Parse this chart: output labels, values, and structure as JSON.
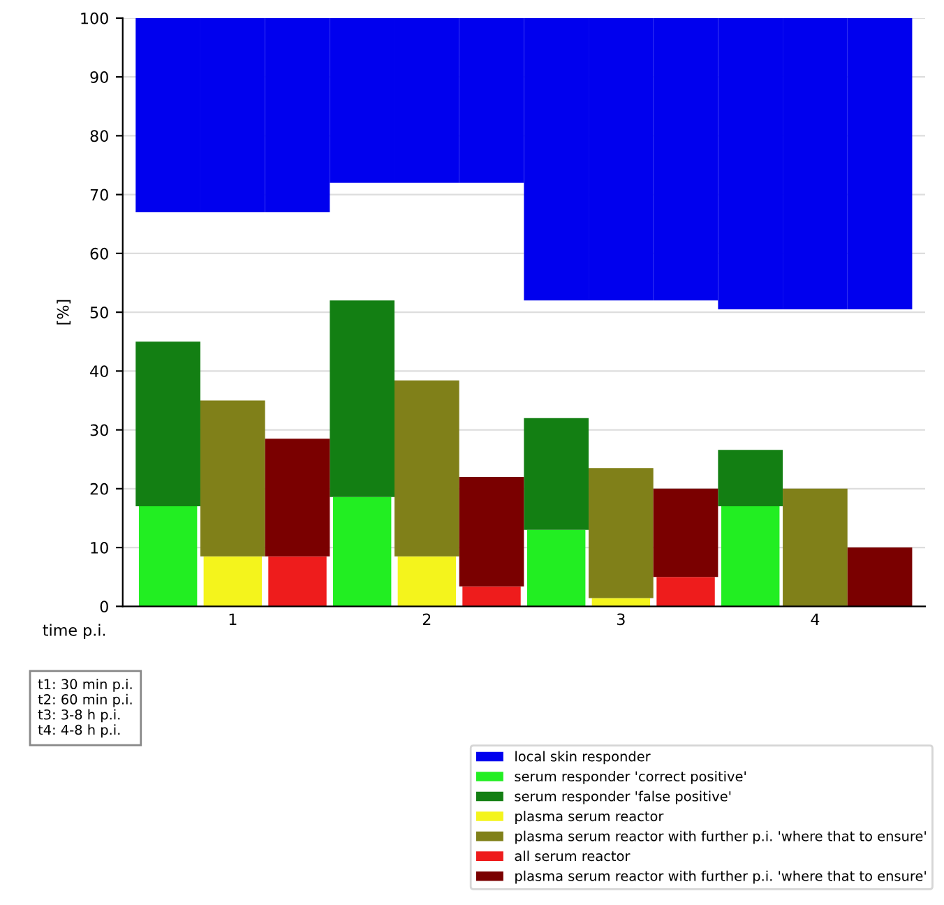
{
  "chart_data": {
    "type": "bar",
    "categories": [
      null,
      "1",
      null,
      null,
      "2",
      null,
      null,
      "3",
      null,
      null,
      "4",
      null
    ],
    "xlabel": "time p.i.",
    "ylabel": "[%]",
    "ylim": [
      0,
      100
    ],
    "yticks": [
      0,
      10,
      20,
      30,
      40,
      50,
      60,
      70,
      80,
      90,
      100
    ],
    "grid": "y",
    "legend": "bottom",
    "series": [
      {
        "name": "serum responder 'correct positive'",
        "color": "#22ee22",
        "values": [
          17,
          null,
          null,
          18.6,
          null,
          null,
          13,
          null,
          null,
          17,
          null,
          null
        ]
      },
      {
        "name": "serum responder 'false positive'",
        "color": "#137f13",
        "values": [
          28,
          null,
          null,
          33.4,
          null,
          null,
          19,
          null,
          null,
          9.6,
          null,
          null
        ],
        "base": [
          17,
          null,
          null,
          18.6,
          null,
          null,
          13,
          null,
          null,
          17,
          null,
          null
        ]
      },
      {
        "name": "plasma serum reactor",
        "color": "#f4f41c",
        "values": [
          null,
          8.5,
          null,
          null,
          8.5,
          null,
          null,
          1.4,
          null,
          null,
          null,
          null
        ]
      },
      {
        "name": "plasma serum reactor with further p.i. 'where that to ensure'",
        "color": "#808019",
        "values": [
          null,
          26.5,
          null,
          null,
          29.9,
          null,
          null,
          22.1,
          null,
          null,
          20,
          null
        ],
        "base": [
          null,
          8.5,
          null,
          null,
          8.5,
          null,
          null,
          1.4,
          null,
          null,
          0,
          null
        ]
      },
      {
        "name": "all serum reactor",
        "color": "#ee1c1c",
        "values": [
          null,
          null,
          8.5,
          null,
          null,
          3.4,
          null,
          null,
          5,
          null,
          null,
          null
        ]
      },
      {
        "name": "plasma serum reactor with further p.i. 'where that to ensure'",
        "color": "#7a0000",
        "values": [
          null,
          null,
          20,
          null,
          null,
          18.6,
          null,
          null,
          15,
          null,
          null,
          10
        ],
        "base": [
          null,
          null,
          8.5,
          null,
          null,
          3.4,
          null,
          null,
          5,
          null,
          null,
          0
        ]
      },
      {
        "name": "local skin responder",
        "color": "#0000ee",
        "values": [
          33,
          33,
          33,
          28,
          28,
          28,
          48,
          48,
          48,
          49.5,
          49.5,
          49.5
        ],
        "base": [
          67,
          67,
          67,
          72,
          72,
          72,
          52,
          52,
          52,
          50.5,
          50.5,
          50.5
        ]
      }
    ],
    "annotations": [
      "t1: 30 min p.i.\nt2: 60 min p.i.\nt3: 3-8 h p.i.\nt4: 4-8 h p.i."
    ]
  }
}
